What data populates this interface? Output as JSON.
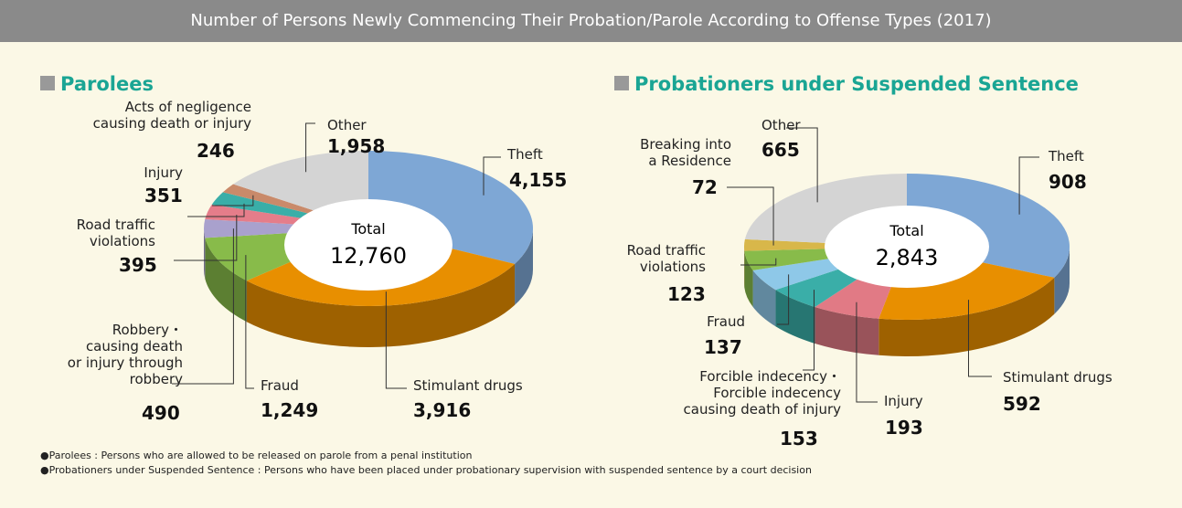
{
  "title": "Number of Persons Newly Commencing Their Probation/Parole According to Offense Types (2017)",
  "chart_data": [
    {
      "type": "pie",
      "title": "Parolees",
      "center_label": "Total",
      "total": {
        "value": 12760,
        "label": "12,760"
      },
      "categories": [
        "Theft",
        "Stimulant drugs",
        "Fraud",
        "Robbery・\ncausing death\nor injury through\nrobbery",
        "Road traffic\nviolations",
        "Injury",
        "Acts of negligence\ncausing death or injury",
        "Other"
      ],
      "values": [
        4155,
        3916,
        1249,
        490,
        395,
        351,
        246,
        1958
      ],
      "value_labels": [
        "4,155",
        "3,916",
        "1,249",
        "490",
        "395",
        "351",
        "246",
        "1,958"
      ],
      "colors": [
        "#7ea7d5",
        "#e88f00",
        "#88bb4a",
        "#a9a1cd",
        "#e57d8a",
        "#3aaea8",
        "#c98a6a",
        "#d4d4d4"
      ]
    },
    {
      "type": "pie",
      "title": "Probationers under Suspended Sentence",
      "center_label": "Total",
      "total": {
        "value": 2843,
        "label": "2,843"
      },
      "categories": [
        "Theft",
        "Stimulant drugs",
        "Injury",
        "Forcible indecency・\nForcible indecency\ncausing death of injury",
        "Fraud",
        "Road traffic\nviolations",
        "Breaking into\na Residence",
        "Other"
      ],
      "values": [
        908,
        592,
        193,
        153,
        137,
        123,
        72,
        665
      ],
      "value_labels": [
        "908",
        "592",
        "193",
        "153",
        "137",
        "123",
        "72",
        "665"
      ],
      "colors": [
        "#7ea7d5",
        "#e88f00",
        "#e17a85",
        "#3aaea8",
        "#8ec8e8",
        "#88bb4a",
        "#d8b74a",
        "#d4d4d4"
      ]
    }
  ],
  "notes": [
    "●Parolees : Persons who are allowed to be released on parole from a penal institution",
    "●Probationers under Suspended Sentence : Persons who have been placed under probationary supervision with suspended sentence by a court decision"
  ]
}
